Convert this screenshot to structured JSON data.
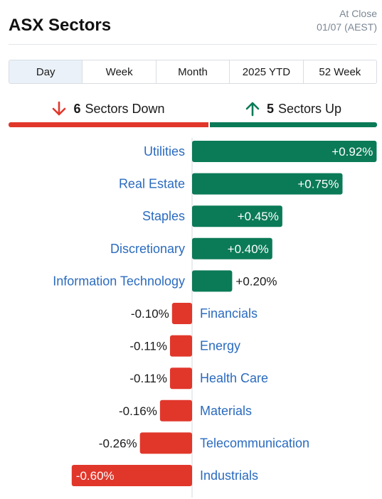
{
  "header": {
    "title": "ASX Sectors",
    "status_line1": "At Close",
    "status_line2": "01/07 (AEST)"
  },
  "tabs": [
    {
      "label": "Day",
      "active": true
    },
    {
      "label": "Week",
      "active": false
    },
    {
      "label": "Month",
      "active": false
    },
    {
      "label": "2025 YTD",
      "active": false
    },
    {
      "label": "52 Week",
      "active": false
    }
  ],
  "summary": {
    "down_count": "6",
    "down_text": "Sectors Down",
    "up_count": "5",
    "up_text": "Sectors Up",
    "down_icon": "arrow-down-icon",
    "up_icon": "arrow-up-icon"
  },
  "colors": {
    "up": "#0b7a57",
    "down": "#e1372b",
    "label": "#2a6bbf"
  },
  "chart_data": {
    "type": "bar",
    "orientation": "horizontal",
    "categories": [
      "Utilities",
      "Real Estate",
      "Staples",
      "Discretionary",
      "Information Technology",
      "Financials",
      "Energy",
      "Health Care",
      "Materials",
      "Telecommunication",
      "Industrials"
    ],
    "values": [
      0.92,
      0.75,
      0.45,
      0.4,
      0.2,
      -0.1,
      -0.11,
      -0.11,
      -0.16,
      -0.26,
      -0.6
    ],
    "value_labels": [
      "+0.92%",
      "+0.75%",
      "+0.45%",
      "+0.40%",
      "+0.20%",
      "-0.10%",
      "-0.11%",
      "-0.11%",
      "-0.16%",
      "-0.26%",
      "-0.60%"
    ],
    "unit": "%",
    "grid": false,
    "legend": "none"
  }
}
